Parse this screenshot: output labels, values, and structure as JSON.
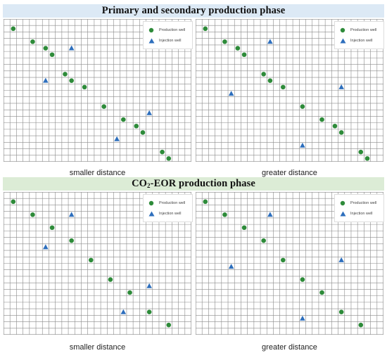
{
  "sections": {
    "top": {
      "title": "Primary and secondary production phase"
    },
    "bottom": {
      "title_prefix": "CO",
      "title_sub": "2",
      "title_suffix": "-EOR production phase"
    }
  },
  "legend": {
    "production_label": "Production well",
    "injection_label": "Injection well"
  },
  "colors": {
    "production": "#2e8b3a",
    "injection": "#2e6fbd",
    "grid": "#8a8a8a",
    "top_banner": "#dce9f5",
    "bottom_banner": "#dcecd6"
  },
  "grid": {
    "columns": 29,
    "rows": 22
  },
  "panels": [
    {
      "caption": "smaller distance",
      "production_wells": [
        [
          1,
          1
        ],
        [
          4,
          3
        ],
        [
          6,
          4
        ],
        [
          7,
          5
        ],
        [
          9,
          8
        ],
        [
          10,
          9
        ],
        [
          12,
          10
        ],
        [
          15,
          13
        ],
        [
          18,
          15
        ],
        [
          20,
          16
        ],
        [
          21,
          17
        ],
        [
          24,
          20
        ],
        [
          25,
          21
        ]
      ],
      "injection_wells": [
        [
          10,
          4
        ],
        [
          6,
          9
        ],
        [
          22,
          14
        ],
        [
          17,
          18
        ]
      ]
    },
    {
      "caption": "greater distance",
      "production_wells": [
        [
          1,
          1
        ],
        [
          4,
          3
        ],
        [
          6,
          4
        ],
        [
          7,
          5
        ],
        [
          10,
          8
        ],
        [
          11,
          9
        ],
        [
          13,
          10
        ],
        [
          16,
          13
        ],
        [
          19,
          15
        ],
        [
          21,
          16
        ],
        [
          22,
          17
        ],
        [
          25,
          20
        ],
        [
          26,
          21
        ]
      ],
      "injection_wells": [
        [
          11,
          3
        ],
        [
          5,
          11
        ],
        [
          22,
          10
        ],
        [
          16,
          19
        ]
      ]
    },
    {
      "caption": "smaller distance",
      "production_wells": [
        [
          1,
          1
        ],
        [
          4,
          3
        ],
        [
          7,
          5
        ],
        [
          10,
          7
        ],
        [
          13,
          10
        ],
        [
          16,
          13
        ],
        [
          19,
          15
        ],
        [
          22,
          18
        ],
        [
          25,
          20
        ]
      ],
      "injection_wells": [
        [
          10,
          3
        ],
        [
          6,
          8
        ],
        [
          22,
          14
        ],
        [
          18,
          18
        ]
      ]
    },
    {
      "caption": "greater distance",
      "production_wells": [
        [
          1,
          1
        ],
        [
          4,
          3
        ],
        [
          7,
          5
        ],
        [
          10,
          7
        ],
        [
          13,
          10
        ],
        [
          16,
          13
        ],
        [
          19,
          15
        ],
        [
          22,
          18
        ],
        [
          25,
          20
        ]
      ],
      "injection_wells": [
        [
          11,
          3
        ],
        [
          5,
          11
        ],
        [
          22,
          10
        ],
        [
          16,
          19
        ]
      ]
    }
  ]
}
